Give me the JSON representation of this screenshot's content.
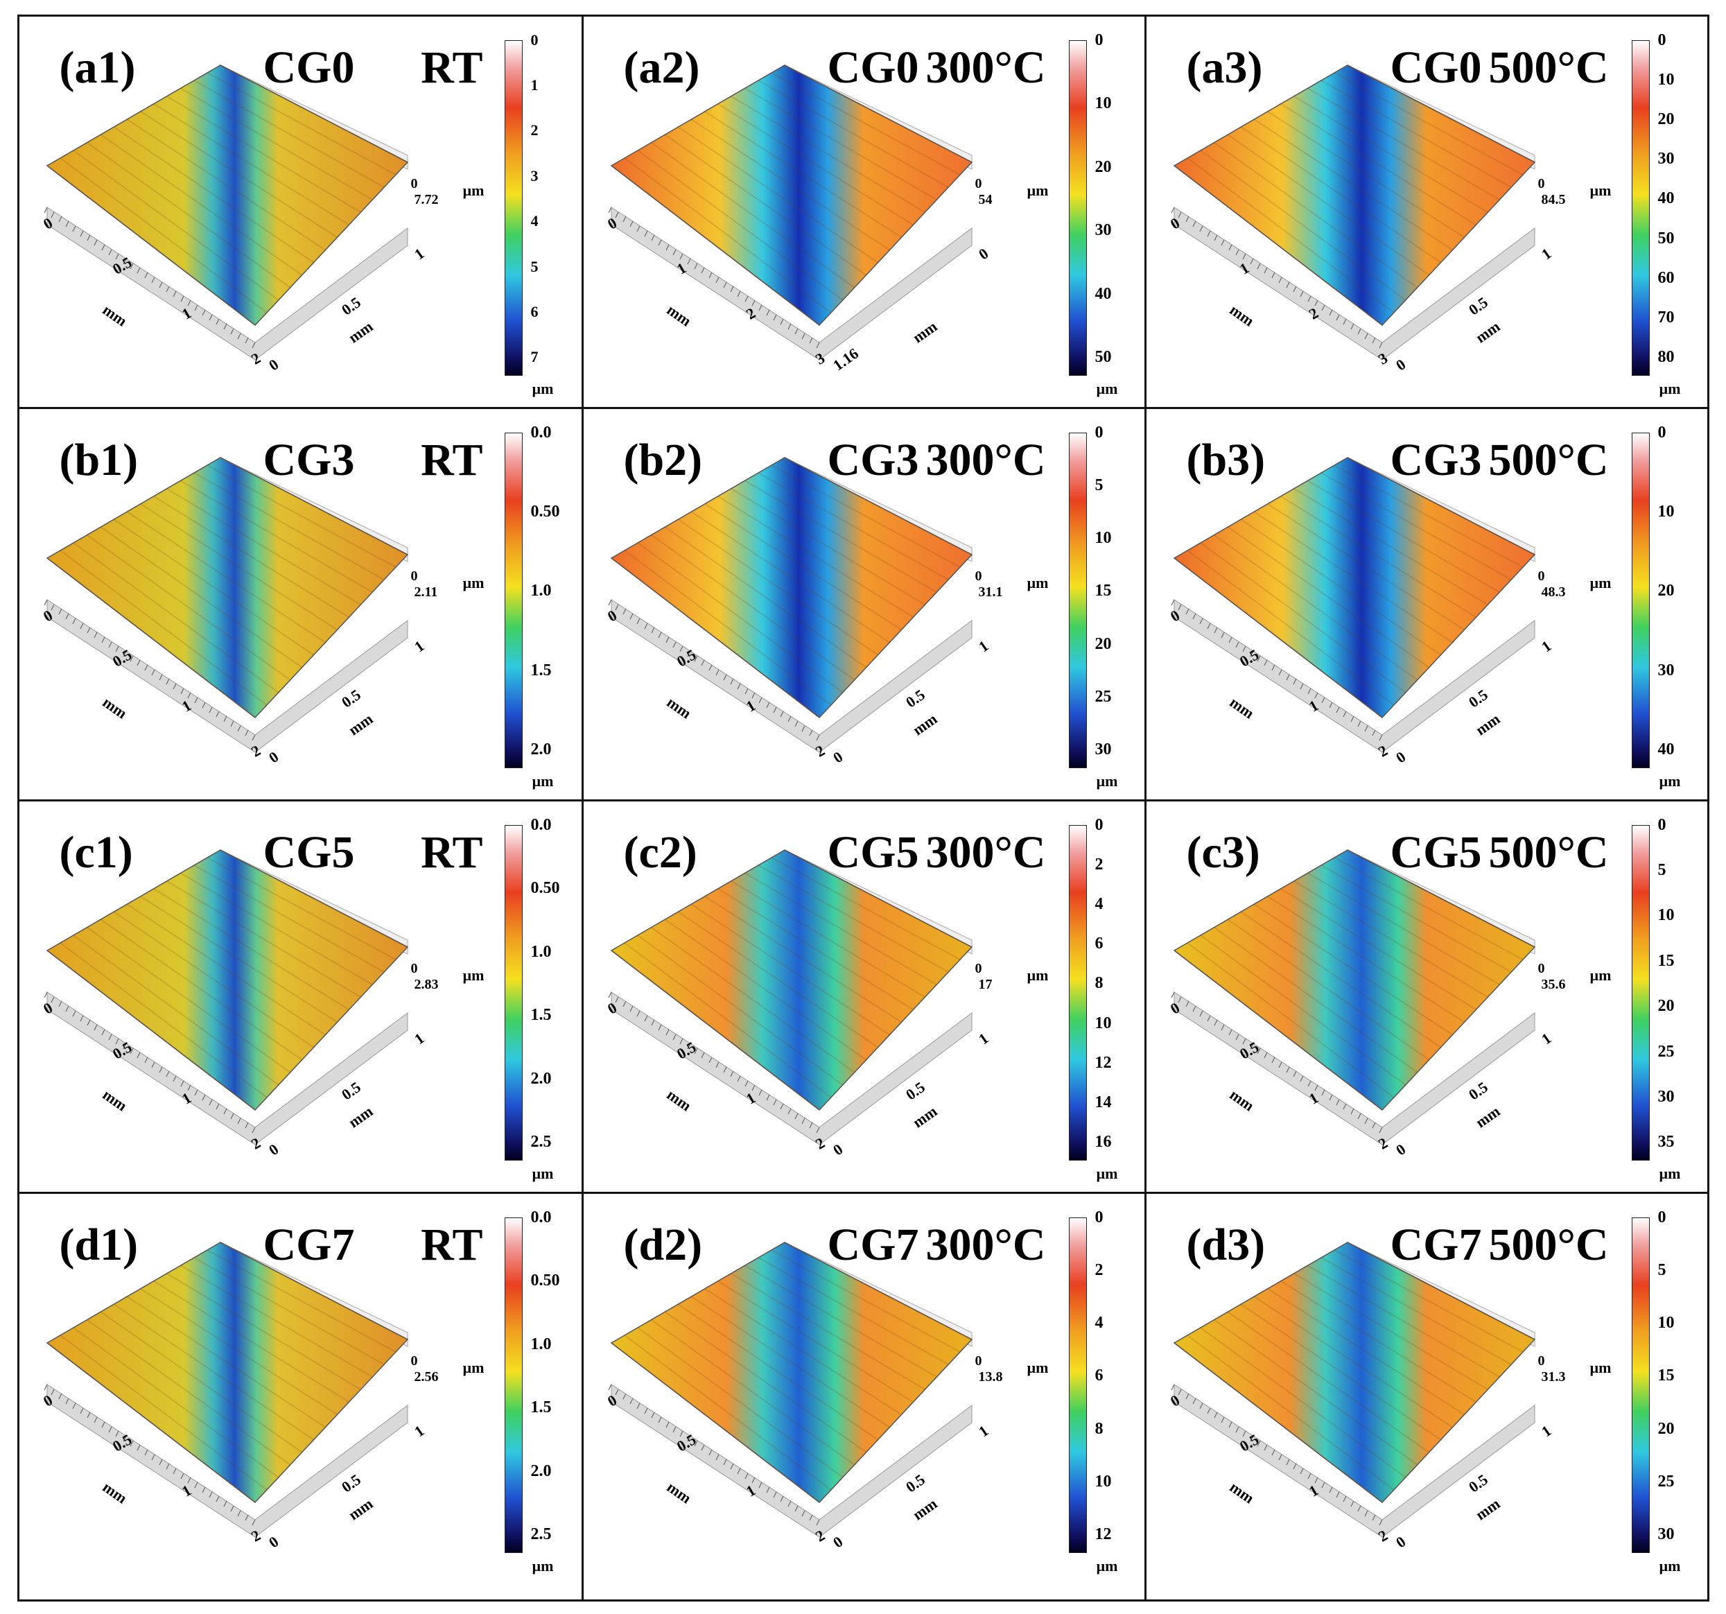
{
  "panels": [
    {
      "id": "a1",
      "label": "(a1)",
      "sample": "CG0",
      "condition": "RT",
      "zmax": "7.72",
      "z0": "0",
      "zunit": "µm",
      "cb_unit": "µm",
      "cb_ticks": [
        "0",
        "1",
        "2",
        "3",
        "4",
        "5",
        "6",
        "7"
      ],
      "x_ticks": [
        "0",
        "0.5",
        "1",
        "2"
      ],
      "y_ticks": [
        "0",
        "0.5",
        "1"
      ],
      "x_unit": "mm",
      "y_unit": "mm",
      "wear": "mild"
    },
    {
      "id": "a2",
      "label": "(a2)",
      "sample": "CG0",
      "condition": "300°C",
      "zmax": "54",
      "z0": "0",
      "zunit": "µm",
      "cb_unit": "µm",
      "cb_ticks": [
        "0",
        "10",
        "20",
        "30",
        "40",
        "50"
      ],
      "x_ticks": [
        "0",
        "1",
        "2",
        "3"
      ],
      "y_ticks": [
        "1.16",
        "0"
      ],
      "x_unit": "mm",
      "y_unit": "mm",
      "wear": "deep"
    },
    {
      "id": "a3",
      "label": "(a3)",
      "sample": "CG0",
      "condition": "500°C",
      "zmax": "84.5",
      "z0": "0",
      "zunit": "µm",
      "cb_unit": "µm",
      "cb_ticks": [
        "0",
        "10",
        "20",
        "30",
        "40",
        "50",
        "60",
        "70",
        "80"
      ],
      "x_ticks": [
        "0",
        "1",
        "2",
        "3"
      ],
      "y_ticks": [
        "0",
        "0.5",
        "1"
      ],
      "x_unit": "mm",
      "y_unit": "mm",
      "wear": "deep"
    },
    {
      "id": "b1",
      "label": "(b1)",
      "sample": "CG3",
      "condition": "RT",
      "zmax": "2.11",
      "z0": "0",
      "zunit": "µm",
      "cb_unit": "µm",
      "cb_ticks": [
        "0.0",
        "0.50",
        "1.0",
        "1.5",
        "2.0"
      ],
      "x_ticks": [
        "0",
        "0.5",
        "1",
        "2"
      ],
      "y_ticks": [
        "0",
        "0.5",
        "1"
      ],
      "x_unit": "mm",
      "y_unit": "mm",
      "wear": "mild"
    },
    {
      "id": "b2",
      "label": "(b2)",
      "sample": "CG3",
      "condition": "300°C",
      "zmax": "31.1",
      "z0": "0",
      "zunit": "µm",
      "cb_unit": "µm",
      "cb_ticks": [
        "0",
        "5",
        "10",
        "15",
        "20",
        "25",
        "30"
      ],
      "x_ticks": [
        "0",
        "0.5",
        "1",
        "2"
      ],
      "y_ticks": [
        "0",
        "0.5",
        "1"
      ],
      "x_unit": "mm",
      "y_unit": "mm",
      "wear": "deep"
    },
    {
      "id": "b3",
      "label": "(b3)",
      "sample": "CG3",
      "condition": "500°C",
      "zmax": "48.3",
      "z0": "0",
      "zunit": "µm",
      "cb_unit": "µm",
      "cb_ticks": [
        "0",
        "10",
        "20",
        "30",
        "40"
      ],
      "x_ticks": [
        "0",
        "0.5",
        "1",
        "2"
      ],
      "y_ticks": [
        "0",
        "0.5",
        "1"
      ],
      "x_unit": "mm",
      "y_unit": "mm",
      "wear": "deep"
    },
    {
      "id": "c1",
      "label": "(c1)",
      "sample": "CG5",
      "condition": "RT",
      "zmax": "2.83",
      "z0": "0",
      "zunit": "µm",
      "cb_unit": "µm",
      "cb_ticks": [
        "0.0",
        "0.50",
        "1.0",
        "1.5",
        "2.0",
        "2.5"
      ],
      "x_ticks": [
        "0",
        "0.5",
        "1",
        "2"
      ],
      "y_ticks": [
        "0",
        "0.5",
        "1"
      ],
      "x_unit": "mm",
      "y_unit": "mm",
      "wear": "mild"
    },
    {
      "id": "c2",
      "label": "(c2)",
      "sample": "CG5",
      "condition": "300°C",
      "zmax": "17",
      "z0": "0",
      "zunit": "µm",
      "cb_unit": "µm",
      "cb_ticks": [
        "0",
        "2",
        "4",
        "6",
        "8",
        "10",
        "12",
        "14",
        "16"
      ],
      "x_ticks": [
        "0",
        "0.5",
        "1",
        "2"
      ],
      "y_ticks": [
        "0",
        "0.5",
        "1"
      ],
      "x_unit": "mm",
      "y_unit": "mm",
      "wear": "medium"
    },
    {
      "id": "c3",
      "label": "(c3)",
      "sample": "CG5",
      "condition": "500°C",
      "zmax": "35.6",
      "z0": "0",
      "zunit": "µm",
      "cb_unit": "µm",
      "cb_ticks": [
        "0",
        "5",
        "10",
        "15",
        "20",
        "25",
        "30",
        "35"
      ],
      "x_ticks": [
        "0",
        "0.5",
        "1",
        "2"
      ],
      "y_ticks": [
        "0",
        "0.5",
        "1"
      ],
      "x_unit": "mm",
      "y_unit": "mm",
      "wear": "medium"
    },
    {
      "id": "d1",
      "label": "(d1)",
      "sample": "CG7",
      "condition": "RT",
      "zmax": "2.56",
      "z0": "0",
      "zunit": "µm",
      "cb_unit": "µm",
      "cb_ticks": [
        "0.0",
        "0.50",
        "1.0",
        "1.5",
        "2.0",
        "2.5"
      ],
      "x_ticks": [
        "0",
        "0.5",
        "1",
        "2"
      ],
      "y_ticks": [
        "0",
        "0.5",
        "1"
      ],
      "x_unit": "mm",
      "y_unit": "mm",
      "wear": "mild"
    },
    {
      "id": "d2",
      "label": "(d2)",
      "sample": "CG7",
      "condition": "300°C",
      "zmax": "13.8",
      "z0": "0",
      "zunit": "µm",
      "cb_unit": "µm",
      "cb_ticks": [
        "0",
        "2",
        "4",
        "6",
        "8",
        "10",
        "12"
      ],
      "x_ticks": [
        "0",
        "0.5",
        "1",
        "2"
      ],
      "y_ticks": [
        "0",
        "0.5",
        "1"
      ],
      "x_unit": "mm",
      "y_unit": "mm",
      "wear": "medium"
    },
    {
      "id": "d3",
      "label": "(d3)",
      "sample": "CG7",
      "condition": "500°C",
      "zmax": "31.3",
      "z0": "0",
      "zunit": "µm",
      "cb_unit": "µm",
      "cb_ticks": [
        "0",
        "5",
        "10",
        "15",
        "20",
        "25",
        "30"
      ],
      "x_ticks": [
        "0",
        "0.5",
        "1",
        "2"
      ],
      "y_ticks": [
        "0",
        "0.5",
        "1"
      ],
      "x_unit": "mm",
      "y_unit": "mm",
      "wear": "medium"
    }
  ]
}
